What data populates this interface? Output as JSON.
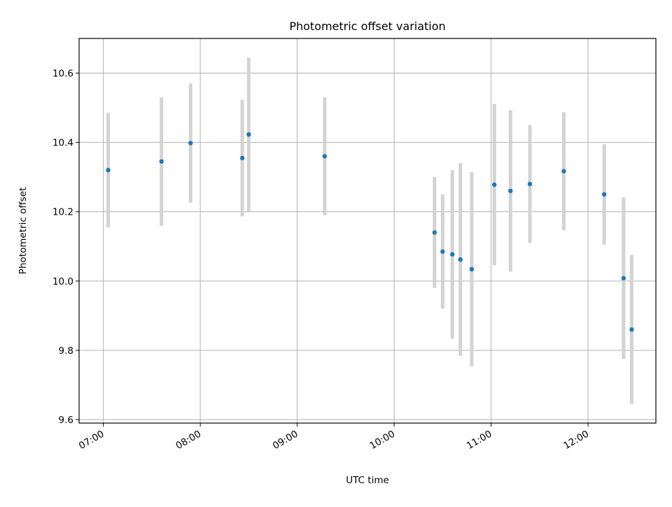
{
  "chart_data": {
    "type": "scatter",
    "title": "Photometric offset variation",
    "xlabel": "UTC time",
    "ylabel": "Photometric offset",
    "xlim": [
      "06:45",
      "12:42"
    ],
    "ylim": [
      9.59,
      10.7
    ],
    "xticks": [
      "07:00",
      "08:00",
      "09:00",
      "10:00",
      "11:00",
      "12:00"
    ],
    "yticks": [
      "9.6",
      "9.8",
      "10.0",
      "10.2",
      "10.4",
      "10.6"
    ],
    "grid": true,
    "marker_color": "#1f77b4",
    "errorbar_color": "#d3d3d3",
    "points": [
      {
        "x": "07:03",
        "y": 10.32,
        "yerr": 0.165
      },
      {
        "x": "07:36",
        "y": 10.345,
        "yerr": 0.185
      },
      {
        "x": "07:54",
        "y": 10.398,
        "yerr": 0.172
      },
      {
        "x": "08:26",
        "y": 10.355,
        "yerr": 0.168
      },
      {
        "x": "08:30",
        "y": 10.423,
        "yerr": 0.222
      },
      {
        "x": "09:17",
        "y": 10.36,
        "yerr": 0.17
      },
      {
        "x": "10:25",
        "y": 10.14,
        "yerr": 0.16
      },
      {
        "x": "10:30",
        "y": 10.085,
        "yerr": 0.165
      },
      {
        "x": "10:36",
        "y": 10.077,
        "yerr": 0.243
      },
      {
        "x": "10:41",
        "y": 10.062,
        "yerr": 0.278
      },
      {
        "x": "10:48",
        "y": 10.034,
        "yerr": 0.28
      },
      {
        "x": "11:02",
        "y": 10.278,
        "yerr": 0.233
      },
      {
        "x": "11:12",
        "y": 10.26,
        "yerr": 0.233
      },
      {
        "x": "11:24",
        "y": 10.28,
        "yerr": 0.17
      },
      {
        "x": "11:45",
        "y": 10.317,
        "yerr": 0.17
      },
      {
        "x": "12:10",
        "y": 10.25,
        "yerr": 0.145
      },
      {
        "x": "12:22",
        "y": 10.008,
        "yerr": 0.233
      },
      {
        "x": "12:27",
        "y": 9.86,
        "yerr": 0.215
      }
    ]
  }
}
